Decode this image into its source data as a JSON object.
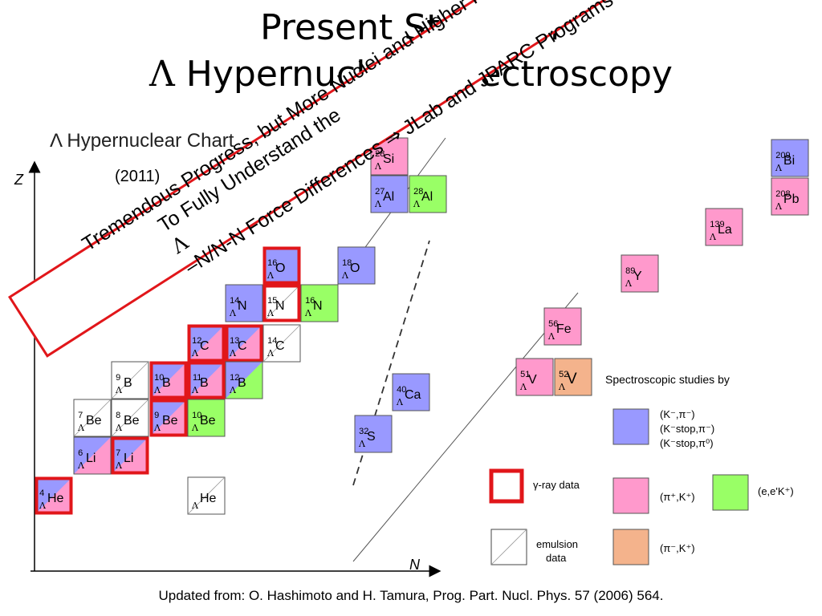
{
  "title": {
    "line1": "Present Status of",
    "lambda": "Λ",
    "line2": " Hypernuclear Spectroscopy"
  },
  "chart": {
    "heading": "Λ Hypernuclear Chart",
    "year": "(2011)",
    "z_axis_label": "Z",
    "n_axis_label": "N",
    "cells": [
      {
        "a": "28",
        "el": "Si",
        "method": "pi_plus_k"
      },
      {
        "a": "27",
        "el": "Al",
        "method": "k_pi"
      },
      {
        "a": "28",
        "el": "Al",
        "method": "e_eK"
      },
      {
        "a": "16",
        "el": "O",
        "method": "k_pi",
        "gamma": true
      },
      {
        "a": "18",
        "el": "O",
        "method": "k_pi"
      },
      {
        "a": "14",
        "el": "N",
        "method": "k_pi"
      },
      {
        "a": "15",
        "el": "N",
        "method": "emulsion",
        "gamma": true
      },
      {
        "a": "16",
        "el": "N",
        "method": "e_eK"
      },
      {
        "a": "12",
        "el": "C",
        "method": "k_pi_pi_plus",
        "gamma": true
      },
      {
        "a": "13",
        "el": "C",
        "method": "k_pi_pi_plus",
        "gamma": true
      },
      {
        "a": "14",
        "el": "C",
        "method": "emulsion"
      },
      {
        "a": "9",
        "el": "B",
        "method": "emulsion"
      },
      {
        "a": "10",
        "el": "B",
        "method": "k_pi_pi_plus",
        "gamma": true
      },
      {
        "a": "11",
        "el": "B",
        "method": "k_pi_pi_plus",
        "gamma": true
      },
      {
        "a": "12",
        "el": "B",
        "method": "k_pi_e_eK"
      },
      {
        "a": "7",
        "el": "Be",
        "method": "emulsion"
      },
      {
        "a": "8",
        "el": "Be",
        "method": "emulsion"
      },
      {
        "a": "9",
        "el": "Be",
        "method": "k_pi_pi_plus",
        "gamma": true
      },
      {
        "a": "10",
        "el": "Be",
        "method": "e_eK_partial"
      },
      {
        "a": "6",
        "el": "Li",
        "method": "k_pi_pi_plus"
      },
      {
        "a": "7",
        "el": "Li",
        "method": "k_pi_pi_plus",
        "gamma": true
      },
      {
        "a": "4",
        "el": "He",
        "method": "k_pi_pi_plus",
        "gamma": true
      },
      {
        "a": "",
        "el": "He",
        "method": "emulsion"
      },
      {
        "a": "32",
        "el": "S",
        "method": "k_pi"
      },
      {
        "a": "40",
        "el": "Ca",
        "method": "k_pi"
      },
      {
        "a": "51",
        "el": "V",
        "method": "pi_plus_k"
      },
      {
        "a": "52",
        "el": "V",
        "method": "pi_minus_k"
      },
      {
        "a": "56",
        "el": "Fe",
        "method": "pi_plus_k"
      },
      {
        "a": "89",
        "el": "Y",
        "method": "pi_plus_k"
      },
      {
        "a": "139",
        "el": "La",
        "method": "pi_plus_k"
      },
      {
        "a": "209",
        "el": "Bi",
        "method": "k_pi"
      },
      {
        "a": "208",
        "el": "Pb",
        "method": "pi_plus_k"
      }
    ],
    "colors": {
      "k_pi": "#9999ff",
      "pi_plus_k": "#ff99cc",
      "e_eK": "#99ff66",
      "pi_minus_k": "#f4b38c",
      "gamma_border": "#e1161a",
      "emulsion": "#ffffff"
    },
    "legend": {
      "heading": "Spectroscopic studies by",
      "k_pi_lines": [
        "(K⁻,π⁻)",
        "(K⁻stop,π⁻)",
        "(K⁻stop,π⁰)"
      ],
      "gamma": "γ-ray data",
      "pi_plus_k": "(π⁺,K⁺)",
      "e_eK": "(e,e'K⁺)",
      "emulsion_line1": "emulsion",
      "emulsion_line2": "data",
      "pi_minus_k": "(π⁻,K⁺)"
    }
  },
  "banner": {
    "line1": "Tremendous Progress, but More Nuclei and Higher Precision are Needed",
    "line2_a": "To Fully Understand the ",
    "lambda": "Λ",
    "line2_b": "–N/N-N Force Differences ⇒ JLab and JPARC Programs"
  },
  "footer": "Updated from: O. Hashimoto and H. Tamura, Prog. Part. Nucl. Phys. 57 (2006) 564."
}
